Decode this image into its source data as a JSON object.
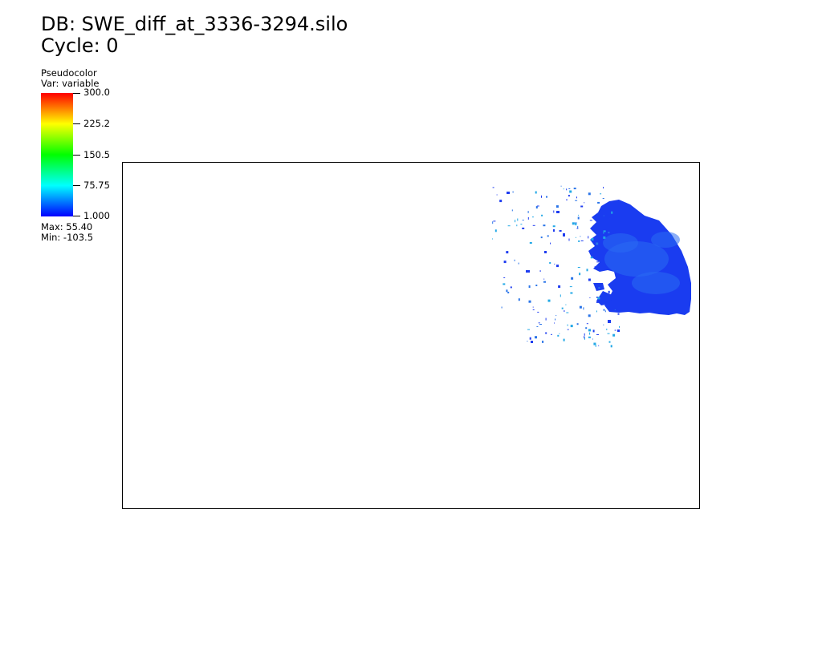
{
  "header": {
    "db_label": "DB: SWE_diff_at_3336-3294.silo",
    "cycle_label": "Cycle: 0"
  },
  "legend": {
    "plot_type": "Pseudocolor",
    "var_label": "Var: variable",
    "ticks": [
      "300.0",
      "225.2",
      "150.5",
      "75.75",
      "1.000"
    ],
    "max_label": "Max:  55.40",
    "min_label": "Min: -103.5",
    "colormap": [
      "#0000ff",
      "#00ffff",
      "#00ff00",
      "#ffff00",
      "#ff0000"
    ]
  },
  "plot": {
    "fill_color": "#1a3cf0",
    "highlight_color": "#2a6cf2",
    "speck_colors": [
      "#1f3df0",
      "#2a74e8",
      "#22a8e6"
    ]
  }
}
